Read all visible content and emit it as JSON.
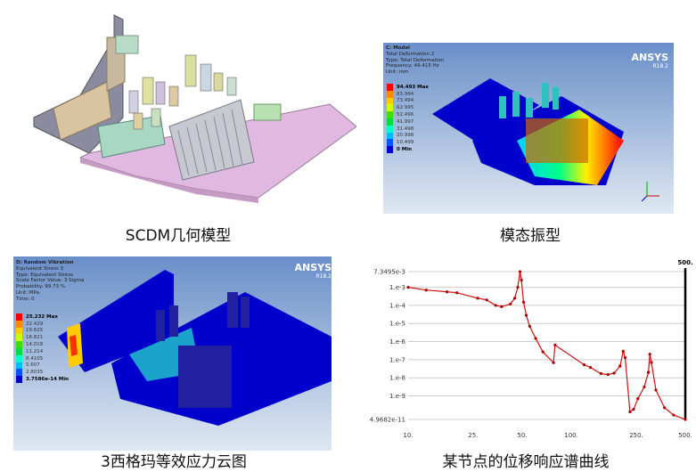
{
  "captions": {
    "cad": "SCDM几何模型",
    "modal": "模态振型",
    "random": "3西格玛等效应力云图",
    "spectrum": "某节点的位移响应谱曲线"
  },
  "modal": {
    "logo": "ANSYS",
    "version": "R18.2",
    "info": [
      "C: Modal",
      "Total Deformation 2",
      "Type: Total Deformation",
      "Frequency: 49.415 Hz",
      "Unit: mm"
    ],
    "legend": [
      "94.493 Max",
      "83.994",
      "73.494",
      "62.995",
      "52.496",
      "41.997",
      "31.498",
      "20.998",
      "10.499",
      "0 Min"
    ]
  },
  "random": {
    "logo": "ANSYS",
    "version": "R18.2",
    "info": [
      "D: Random Vibration",
      "Equivalent Stress 3",
      "Type: Equivalent Stress",
      "Scale Factor Value: 3 Sigma",
      "Probability: 99.73 %",
      "Unit: MPa",
      "Time: 0"
    ],
    "legend": [
      "25.232 Max",
      "22.429",
      "19.625",
      "16.821",
      "14.018",
      "11.214",
      "8.4105",
      "5.607",
      "2.8035",
      "3.7586e-14 Min"
    ]
  },
  "legend_colors": [
    "#ff0000",
    "#ff8800",
    "#ffcc00",
    "#ccff00",
    "#44dd00",
    "#00dd44",
    "#00ffcc",
    "#00bbff",
    "#0055ff",
    "#0000cc"
  ],
  "chart_data": {
    "type": "line",
    "x_scale": "log",
    "y_scale": "log",
    "xlim": [
      10,
      500
    ],
    "ylim": [
      4.9682e-11,
      0.0073495
    ],
    "x_ticks": [
      "10.",
      "25.",
      "50.",
      "100.",
      "250.",
      "500."
    ],
    "x_tick_values": [
      10,
      25,
      50,
      100,
      250,
      500
    ],
    "y_ticks": [
      "7.3495e-3",
      "1.e-3",
      "1.e-4",
      "1.e-5",
      "1.e-6",
      "1.e-7",
      "1.e-8",
      "1.e-9",
      "4.9682e-11"
    ],
    "y_tick_values": [
      0.0073495,
      0.001,
      0.0001,
      1e-05,
      1e-06,
      1e-07,
      1e-08,
      1e-09,
      4.9682e-11
    ],
    "cursor_label": "500.",
    "series_color": "#cc1111",
    "x": [
      10,
      12.9,
      17.3,
      19.9,
      26.7,
      30.3,
      34.4,
      37.4,
      42.4,
      45,
      47,
      48.5,
      49.5,
      51,
      53,
      55.6,
      60.5,
      67,
      77.8,
      79.5,
      120,
      131,
      152,
      168,
      183,
      199,
      208,
      214,
      229,
      241,
      256,
      280,
      297,
      303,
      310,
      330,
      373,
      424,
      500
    ],
    "y": [
      0.001,
      0.0007,
      0.00056,
      0.0005,
      0.00025,
      0.0002,
      0.0001,
      8.5e-05,
      0.00012,
      0.00025,
      0.001,
      0.0073,
      0.0025,
      0.00015,
      2.8e-05,
      7e-06,
      1.5e-06,
      2.7e-07,
      6.8e-08,
      6.5e-07,
      5.2e-08,
      3.7e-08,
      1.7e-08,
      1.5e-08,
      1.8e-08,
      4.4e-08,
      2.9e-07,
      1.3e-07,
      1.3e-10,
      1.8e-10,
      7e-10,
      3.1e-09,
      2e-08,
      2e-07,
      7e-08,
      2.1e-09,
      2.2e-10,
      8.7e-11,
      4.9682e-11
    ]
  }
}
